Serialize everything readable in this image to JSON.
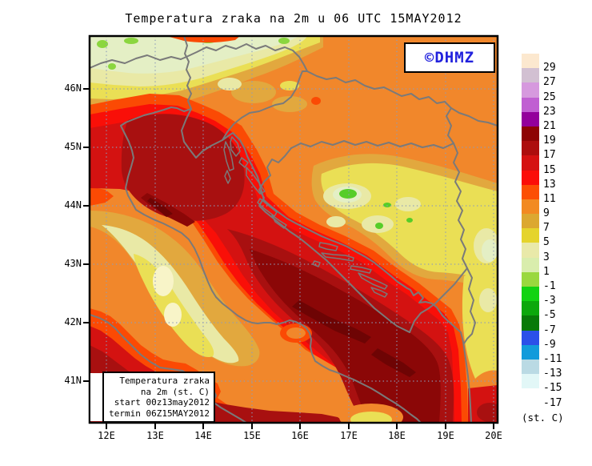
{
  "title": "Temperatura zraka na 2m u 06 UTC 15MAY2012",
  "watermark": {
    "text": "©DHMZ",
    "color": "#2222dd"
  },
  "legend_box": {
    "lines": [
      "Temperatura zraka",
      "na 2m (st. C)",
      "start 00z13may2012",
      "termin 06Z15MAY2012"
    ]
  },
  "axes": {
    "lat_labels": [
      "46N",
      "45N",
      "44N",
      "43N",
      "42N",
      "41N"
    ],
    "lon_labels": [
      "12E",
      "13E",
      "14E",
      "15E",
      "16E",
      "17E",
      "18E",
      "19E",
      "20E"
    ]
  },
  "colorbar": {
    "units": "(st. C)",
    "entries": [
      {
        "label": "29",
        "color": "#fce8cf"
      },
      {
        "label": "27",
        "color": "#d2c0d2"
      },
      {
        "label": "25",
        "color": "#d699de"
      },
      {
        "label": "23",
        "color": "#c05fd2"
      },
      {
        "label": "21",
        "color": "#93009c"
      },
      {
        "label": "19",
        "color": "#8e0404"
      },
      {
        "label": "17",
        "color": "#ad0d0d"
      },
      {
        "label": "15",
        "color": "#d51111"
      },
      {
        "label": "13",
        "color": "#fb0e09"
      },
      {
        "label": "11",
        "color": "#fc4f04"
      },
      {
        "label": "9",
        "color": "#f28a21"
      },
      {
        "label": "7",
        "color": "#dca830"
      },
      {
        "label": "5",
        "color": "#e5d42c"
      },
      {
        "label": "3",
        "color": "#e9e9a9"
      },
      {
        "label": "1",
        "color": "#d9edad"
      },
      {
        "label": "-1",
        "color": "#9ad83e"
      },
      {
        "label": "-3",
        "color": "#12d312"
      },
      {
        "label": "-5",
        "color": "#0ca80c"
      },
      {
        "label": "-7",
        "color": "#087a08"
      },
      {
        "label": "-9",
        "color": "#2b50e9"
      },
      {
        "label": "-11",
        "color": "#129bdb"
      },
      {
        "label": "-13",
        "color": "#badae4"
      },
      {
        "label": "-15",
        "color": "#e2f7f7"
      },
      {
        "label": "-17",
        "color": "#ffffff"
      }
    ]
  },
  "map_palette": {
    "orange": "#f1872b",
    "gold": "#e2a83e",
    "yellow": "#eadf55",
    "khaki": "#e9e9a6",
    "palegreen": "#e4efc5",
    "paleyellow": "#f8f4c8",
    "yellowgreen": "#8bd63f",
    "green": "#56cd28",
    "orangered": "#fb4a04",
    "brightred": "#f90f08",
    "red": "#d41211",
    "darkred": "#a81010",
    "maroon": "#8b0707",
    "darkest": "#6e0404",
    "coast_grey": "#7a7a7a",
    "grid_blue": "#8d9cba",
    "frame_black": "#000000"
  }
}
